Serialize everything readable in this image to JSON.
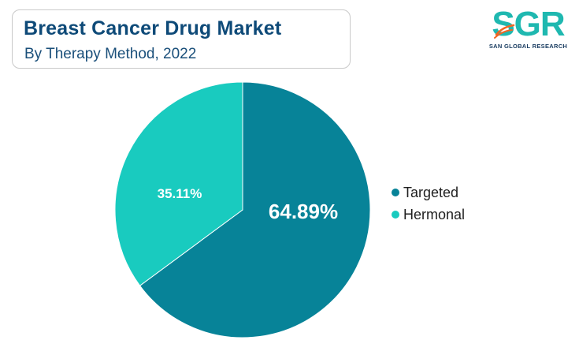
{
  "header": {
    "title": "Breast Cancer Drug Market",
    "subtitle": "By Therapy Method, 2022"
  },
  "logo": {
    "text": "SGR",
    "tagline": "SAN GLOBAL RESEARCH",
    "colors": {
      "text": "#1fb8b0",
      "accent": "#f26522",
      "tagline": "#1d3f63"
    }
  },
  "chart_data": {
    "type": "pie",
    "title": "Breast Cancer Drug Market",
    "subtitle": "By Therapy Method, 2022",
    "slices": [
      {
        "label": "Targeted",
        "value": 64.89,
        "display": "64.89%",
        "color": "#078398"
      },
      {
        "label": "Hermonal",
        "value": 35.11,
        "display": "35.11%",
        "color": "#19cbbf"
      }
    ],
    "start_angle": "12 o'clock",
    "direction": "clockwise",
    "legend_position": "right"
  }
}
